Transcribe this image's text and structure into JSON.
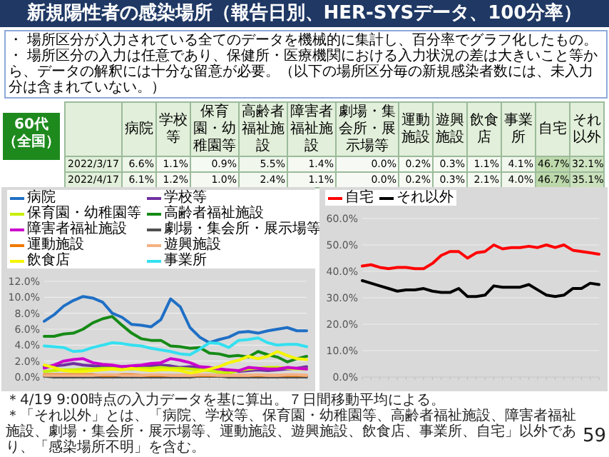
{
  "chart_data": [
    {
      "type": "heatmap",
      "title": "新規陽性者の感染場所（報告日別、HER-SYSデータ、100分率）",
      "subtitle": "60代（全国）",
      "annotations": [
        "・ 場所区分が入力されている全てのデータを機械的に集計し、百分率でグラフ化したもの。",
        "・ 場所区分の入力は任意であり、保健所・医療機関における入力状況の差は大きいこと等から、データの解釈には十分な留意が必要。（以下の場所区分毎の新規感染者数には、未入力分は含まれていない。）"
      ],
      "categories": [
        "病院",
        "学校等",
        "保育園・幼稚園等",
        "高齢者福祉施設",
        "障害者福祉施設",
        "劇場・集会所・展示場等",
        "運動施設",
        "遊興施設",
        "飲食店",
        "事業所",
        "自宅",
        "それ以外"
      ],
      "y_categories": [
        "2022/3/17",
        "2022/4/17"
      ],
      "cells": [
        [
          6.6,
          1.1,
          0.9,
          5.5,
          1.4,
          0.0,
          0.2,
          0.3,
          1.1,
          4.1,
          46.7,
          32.1
        ],
        [
          6.1,
          1.2,
          1.0,
          2.4,
          1.1,
          0.0,
          0.2,
          0.3,
          2.1,
          4.0,
          46.7,
          35.1
        ]
      ],
      "cell_labels": [
        [
          "6.6%",
          "1.1%",
          "0.9%",
          "5.5%",
          "1.4%",
          "0.0%",
          "0.2%",
          "0.3%",
          "1.1%",
          "4.1%",
          "46.7%",
          "32.1%"
        ],
        [
          "6.1%",
          "1.2%",
          "1.0%",
          "2.4%",
          "1.1%",
          "0.0%",
          "0.2%",
          "0.3%",
          "2.1%",
          "4.0%",
          "46.7%",
          "35.1%"
        ]
      ]
    },
    {
      "type": "line",
      "categories": [
        null,
        null,
        null,
        null,
        null,
        null,
        null,
        null,
        null,
        null,
        null,
        null,
        null,
        null,
        null,
        null,
        null,
        null,
        null,
        null,
        null,
        null,
        null,
        null,
        null,
        null,
        null,
        null
      ],
      "series": [
        {
          "name": "病院",
          "color": "#1f6fc5",
          "values": [
            7.0,
            7.8,
            8.9,
            9.6,
            10.1,
            9.9,
            9.4,
            8.0,
            7.5,
            6.6,
            6.5,
            6.3,
            7.2,
            9.8,
            8.8,
            6.2,
            5.0,
            4.3,
            4.7,
            5.0,
            5.6,
            5.7,
            5.5,
            5.8,
            6.0,
            6.2,
            5.8,
            5.8
          ]
        },
        {
          "name": "学校等",
          "color": "#7030a0",
          "values": [
            1.3,
            1.4,
            1.5,
            1.7,
            1.5,
            1.4,
            1.3,
            1.2,
            1.3,
            1.3,
            1.2,
            1.4,
            1.5,
            1.4,
            1.2,
            1.3,
            1.2,
            1.1,
            1.0,
            0.8,
            0.7,
            0.8,
            0.9,
            0.8,
            0.9,
            1.0,
            1.1,
            1.3
          ]
        },
        {
          "name": "保育園・幼稚園等",
          "color": "#c6f000",
          "values": [
            0.7,
            0.8,
            0.9,
            0.9,
            1.0,
            1.0,
            1.1,
            1.1,
            1.0,
            1.0,
            1.1,
            1.1,
            1.2,
            1.1,
            1.1,
            1.0,
            0.9,
            0.8,
            0.6,
            0.5,
            0.8,
            1.0,
            1.1,
            1.2,
            1.2,
            1.1,
            1.0,
            1.0
          ]
        },
        {
          "name": "高齢者福祉施設",
          "color": "#168a16",
          "values": [
            5.1,
            5.1,
            5.4,
            5.5,
            6.0,
            6.8,
            7.3,
            7.6,
            6.5,
            5.5,
            4.8,
            4.6,
            4.6,
            3.9,
            3.8,
            3.6,
            3.7,
            3.0,
            2.9,
            2.6,
            2.7,
            2.5,
            3.2,
            2.8,
            2.5,
            1.9,
            2.3,
            2.6
          ]
        },
        {
          "name": "障害者福祉施設",
          "color": "#cc00cc",
          "values": [
            1.1,
            1.5,
            2.0,
            2.2,
            2.3,
            1.8,
            1.6,
            1.5,
            1.3,
            1.4,
            1.5,
            1.7,
            1.8,
            2.3,
            2.1,
            1.8,
            1.3,
            1.2,
            1.0,
            0.9,
            0.8,
            1.2,
            1.1,
            1.0,
            1.0,
            1.2,
            1.1,
            1.0
          ]
        },
        {
          "name": "劇場・集会所・展示場等",
          "color": "#505050",
          "values": [
            0.1,
            0.0,
            0.0,
            0.0,
            0.0,
            0.0,
            0.0,
            0.0,
            0.0,
            0.0,
            0.0,
            0.0,
            0.0,
            0.0,
            0.0,
            0.0,
            0.1,
            0.1,
            0.1,
            0.0,
            0.0,
            0.0,
            0.0,
            0.0,
            0.0,
            0.0,
            0.0,
            0.0
          ]
        },
        {
          "name": "運動施設",
          "color": "#f07800",
          "values": [
            0.3,
            0.3,
            0.3,
            0.3,
            0.3,
            0.3,
            0.2,
            0.2,
            0.3,
            0.3,
            0.2,
            0.2,
            0.2,
            0.2,
            0.2,
            0.2,
            0.2,
            0.2,
            0.2,
            0.2,
            0.2,
            0.2,
            0.2,
            0.2,
            0.2,
            0.2,
            0.2,
            0.2
          ]
        },
        {
          "name": "遊興施設",
          "color": "#f4b183",
          "values": [
            0.2,
            0.2,
            0.2,
            0.2,
            0.2,
            0.2,
            0.3,
            0.3,
            0.2,
            0.2,
            0.2,
            0.3,
            0.3,
            0.2,
            0.2,
            0.2,
            0.3,
            0.3,
            0.2,
            0.2,
            0.2,
            0.2,
            0.3,
            0.2,
            0.2,
            0.3,
            0.3,
            0.2
          ]
        },
        {
          "name": "飲食店",
          "color": "#f5f500",
          "values": [
            1.5,
            1.2,
            0.8,
            0.7,
            0.7,
            0.8,
            0.9,
            1.0,
            0.9,
            1.1,
            0.9,
            0.8,
            0.9,
            0.9,
            0.8,
            0.5,
            0.7,
            1.0,
            1.3,
            1.8,
            2.1,
            2.6,
            2.3,
            2.6,
            3.2,
            2.7,
            2.3,
            2.2
          ]
        },
        {
          "name": "事業所",
          "color": "#33e0f0",
          "values": [
            3.9,
            3.8,
            3.7,
            3.2,
            3.3,
            3.7,
            4.0,
            4.3,
            4.2,
            4.0,
            3.9,
            3.6,
            3.4,
            3.2,
            2.9,
            2.8,
            3.5,
            4.3,
            4.2,
            3.7,
            4.6,
            4.7,
            4.9,
            4.3,
            4.0,
            4.1,
            4.1,
            3.8
          ]
        }
      ],
      "ylim": [
        0,
        12
      ],
      "yticks": [
        {
          "value": 0,
          "label": "0.0%"
        },
        {
          "value": 2,
          "label": "2.0%"
        },
        {
          "value": 4,
          "label": "4.0%"
        },
        {
          "value": 6,
          "label": "6.0%"
        },
        {
          "value": 8,
          "label": "8.0%"
        },
        {
          "value": 10,
          "label": "10.0%"
        },
        {
          "value": 12,
          "label": "12.0%"
        }
      ],
      "grid": "y",
      "legend": "top",
      "annotations": [
        "＊4/19 9:00時点の入力データを基に算出。７日間移動平均による。",
        "＊「それ以外」とは、「病院、学校等、保育園・幼稚園等、高齢者福祉施設、障害者福祉施設、劇場・集会所・展示場等、運動施設、遊興施設、飲食店、事業所、自宅」以外であり、「感染場所不明」を含む。"
      ]
    },
    {
      "type": "line",
      "categories": [
        null,
        null,
        null,
        null,
        null,
        null,
        null,
        null,
        null,
        null,
        null,
        null,
        null,
        null,
        null,
        null,
        null,
        null,
        null,
        null,
        null,
        null,
        null,
        null,
        null,
        null,
        null,
        null
      ],
      "series": [
        {
          "name": "自宅",
          "color": "#ff0000",
          "values": [
            42,
            42.5,
            41.5,
            41,
            41.5,
            41.5,
            41,
            41,
            43,
            46,
            47.5,
            47.5,
            45,
            47,
            47.5,
            50,
            48.5,
            49,
            49,
            49.5,
            49,
            50,
            49,
            50,
            48,
            47.5,
            47,
            46.5
          ]
        },
        {
          "name": "それ以外",
          "color": "#000000",
          "values": [
            36.5,
            35.5,
            34.5,
            33.5,
            32.5,
            33,
            33,
            33.5,
            32.5,
            32,
            32,
            33.5,
            30.5,
            30.5,
            31,
            34.5,
            34,
            34,
            34,
            35,
            33,
            31,
            30.5,
            31,
            33.5,
            33.5,
            35.5,
            35
          ]
        }
      ],
      "ylim": [
        0,
        60
      ],
      "yticks": [
        {
          "value": 0,
          "label": "0.0%"
        },
        {
          "value": 10,
          "label": "10.0%"
        },
        {
          "value": 20,
          "label": "20.0%"
        },
        {
          "value": 30,
          "label": "30.0%"
        },
        {
          "value": 40,
          "label": "40.0%"
        },
        {
          "value": 50,
          "label": "50.0%"
        },
        {
          "value": 60,
          "label": "60.0%"
        }
      ],
      "grid": "y",
      "legend": "top",
      "annotations": [
        "59"
      ]
    }
  ]
}
